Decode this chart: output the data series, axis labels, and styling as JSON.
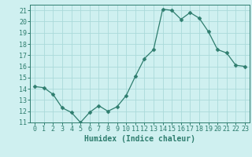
{
  "x": [
    0,
    1,
    2,
    3,
    4,
    5,
    6,
    7,
    8,
    9,
    10,
    11,
    12,
    13,
    14,
    15,
    16,
    17,
    18,
    19,
    20,
    21,
    22,
    23
  ],
  "y": [
    14.2,
    14.1,
    13.5,
    12.3,
    11.9,
    11.0,
    11.9,
    12.5,
    12.0,
    12.4,
    13.4,
    15.1,
    16.7,
    17.5,
    21.1,
    21.0,
    20.2,
    20.8,
    20.3,
    19.1,
    17.5,
    17.2,
    16.1,
    16.0
  ],
  "line_color": "#2e7d6e",
  "marker": "D",
  "marker_size": 2.5,
  "bg_color": "#cff0f0",
  "grid_color": "#aadada",
  "xlabel": "Humidex (Indice chaleur)",
  "ylim": [
    11,
    21.5
  ],
  "xlim": [
    -0.5,
    23.5
  ],
  "yticks": [
    11,
    12,
    13,
    14,
    15,
    16,
    17,
    18,
    19,
    20,
    21
  ],
  "xticks": [
    0,
    1,
    2,
    3,
    4,
    5,
    6,
    7,
    8,
    9,
    10,
    11,
    12,
    13,
    14,
    15,
    16,
    17,
    18,
    19,
    20,
    21,
    22,
    23
  ],
  "label_fontsize": 7,
  "tick_fontsize": 6
}
